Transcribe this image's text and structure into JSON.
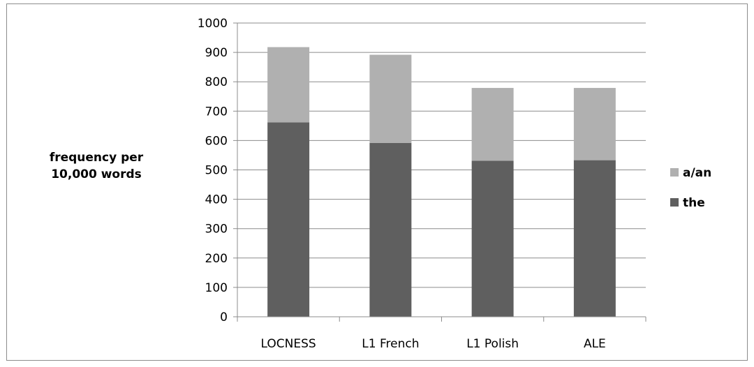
{
  "chart_data": {
    "type": "bar",
    "stacked": true,
    "categories": [
      "LOCNESS",
      "L1 French",
      "L1 Polish",
      "ALE"
    ],
    "series": [
      {
        "name": "the",
        "values": [
          662,
          592,
          531,
          533
        ],
        "color": "#5f5f5f"
      },
      {
        "name": "a/an",
        "values": [
          256,
          300,
          248,
          246
        ],
        "color": "#b0b0b0"
      }
    ],
    "title": "",
    "xlabel": "",
    "ylabel": "frequency per\n10,000 words",
    "ylim": [
      0,
      1000
    ],
    "yticks": [
      "0",
      "100",
      "200",
      "300",
      "400",
      "500",
      "600",
      "700",
      "800",
      "900",
      "1000"
    ],
    "grid": true,
    "legend": {
      "position": "right",
      "order": [
        "a/an",
        "the"
      ]
    }
  }
}
